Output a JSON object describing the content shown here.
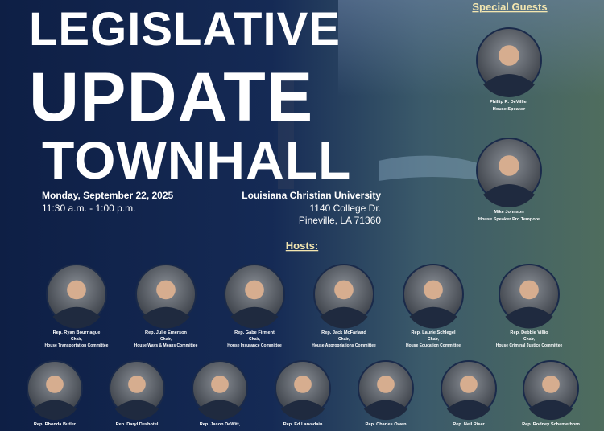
{
  "title": {
    "lines": [
      "LEGISLATIVE",
      "UPDATE",
      "TOWNHALL"
    ]
  },
  "event": {
    "date": "Monday, September 22, 2025",
    "time": "11:30 a.m. - 1:00 p.m."
  },
  "venue": {
    "name": "Louisiana Christian University",
    "street": "1140 College Dr.",
    "city": "Pineville, LA 71360"
  },
  "special_guests": {
    "heading": "Special Guests",
    "guests": [
      {
        "name": "Phillip R. DeVillier",
        "role": "House Speaker"
      },
      {
        "name": "Mike Johnson",
        "role": "House Speaker Pro Tempore"
      }
    ]
  },
  "hosts": {
    "heading": "Hosts:",
    "rows": [
      [
        {
          "name": "Rep. Ryan Bourriaque",
          "title": "Chair,",
          "committee": "House Transportation Committee"
        },
        {
          "name": "Rep. Julie Emerson",
          "title": "Chair,",
          "committee": "House Ways & Means Committee"
        },
        {
          "name": "Rep. Gabe Firment",
          "title": "Chair,",
          "committee": "House Insurance Committee"
        },
        {
          "name": "Rep. Jack McFarland",
          "title": "Chair,",
          "committee": "House Appropriations Committee"
        },
        {
          "name": "Rep. Laurie Schlegel",
          "title": "Chair,",
          "committee": "House Education Committee"
        },
        {
          "name": "Rep. Debbie Villio",
          "title": "Chair,",
          "committee": "House Criminal Justice Committee"
        }
      ],
      [
        {
          "name": "Rep. Rhonda Butler"
        },
        {
          "name": "Rep. Daryl Deshotel"
        },
        {
          "name": "Rep. Jason DeWitt,"
        },
        {
          "name": "Rep. Ed Larvadain"
        },
        {
          "name": "Rep. Charles Owen"
        },
        {
          "name": "Rep. Neil Riser"
        },
        {
          "name": "Rep. Rodney Schamerhorn"
        }
      ]
    ]
  }
}
